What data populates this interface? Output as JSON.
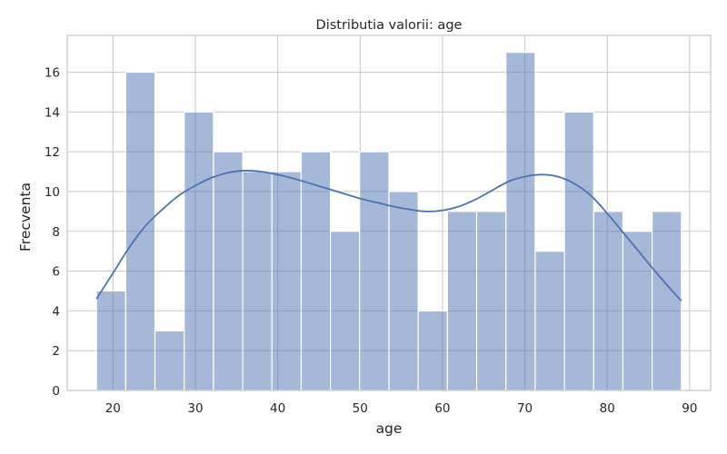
{
  "chart_data": {
    "type": "histogram",
    "title": "Distributia valorii: age",
    "xlabel": "age",
    "ylabel": "Frecventa",
    "xlim": [
      14.45,
      92.55
    ],
    "ylim": [
      0,
      17.85
    ],
    "x_ticks": [
      20,
      30,
      40,
      50,
      60,
      70,
      80,
      90
    ],
    "y_ticks": [
      0,
      2,
      4,
      6,
      8,
      10,
      12,
      14,
      16
    ],
    "grid": true,
    "colors": {
      "bar": "#4c72b0",
      "line": "#4c72b0",
      "grid": "#cccccc"
    },
    "bins": [
      {
        "start": 18.0,
        "end": 21.55,
        "count": 5
      },
      {
        "start": 21.55,
        "end": 25.1,
        "count": 16
      },
      {
        "start": 25.1,
        "end": 28.65,
        "count": 3
      },
      {
        "start": 28.65,
        "end": 32.2,
        "count": 14
      },
      {
        "start": 32.2,
        "end": 35.75,
        "count": 12
      },
      {
        "start": 35.75,
        "end": 39.3,
        "count": 11
      },
      {
        "start": 39.3,
        "end": 42.85,
        "count": 11
      },
      {
        "start": 42.85,
        "end": 46.4,
        "count": 12
      },
      {
        "start": 46.4,
        "end": 49.95,
        "count": 8
      },
      {
        "start": 49.95,
        "end": 53.5,
        "count": 12
      },
      {
        "start": 53.5,
        "end": 57.05,
        "count": 10
      },
      {
        "start": 57.05,
        "end": 60.6,
        "count": 4
      },
      {
        "start": 60.6,
        "end": 64.15,
        "count": 9
      },
      {
        "start": 64.15,
        "end": 67.7,
        "count": 9
      },
      {
        "start": 67.7,
        "end": 71.25,
        "count": 17
      },
      {
        "start": 71.25,
        "end": 74.8,
        "count": 7
      },
      {
        "start": 74.8,
        "end": 78.35,
        "count": 14
      },
      {
        "start": 78.35,
        "end": 81.9,
        "count": 9
      },
      {
        "start": 81.9,
        "end": 85.45,
        "count": 8
      },
      {
        "start": 85.45,
        "end": 89.0,
        "count": 9
      }
    ],
    "kde": {
      "x": [
        18,
        20,
        22,
        24,
        26,
        28,
        30,
        32,
        34,
        36,
        38,
        40,
        42,
        44,
        46,
        48,
        50,
        52,
        54,
        56,
        58,
        60,
        62,
        64,
        66,
        68,
        70,
        72,
        74,
        76,
        78,
        80,
        82,
        84,
        86,
        88,
        89
      ],
      "y": [
        4.6,
        5.9,
        7.2,
        8.3,
        9.1,
        9.8,
        10.3,
        10.7,
        10.95,
        11.05,
        11.0,
        10.85,
        10.65,
        10.4,
        10.15,
        9.9,
        9.65,
        9.45,
        9.25,
        9.1,
        9.0,
        9.05,
        9.25,
        9.6,
        10.05,
        10.5,
        10.75,
        10.85,
        10.75,
        10.4,
        9.8,
        8.9,
        7.9,
        6.9,
        5.9,
        4.95,
        4.5
      ]
    }
  }
}
